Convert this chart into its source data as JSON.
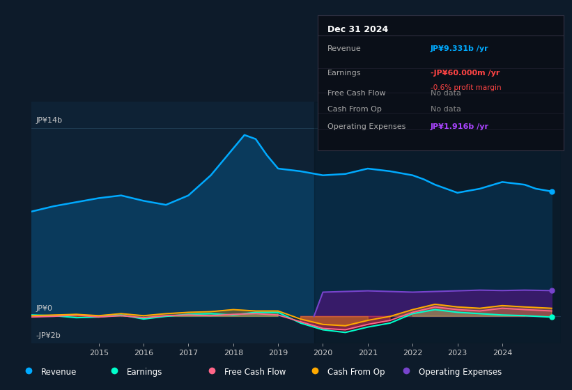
{
  "bg_color": "#0d1b2a",
  "chart_area_color": "#0e2235",
  "grid_color": "#1e3a50",
  "text_color": "#cccccc",
  "info_box": {
    "title": "Dec 31 2024",
    "rows": [
      {
        "label": "Revenue",
        "value": "JP¥9.331b /yr",
        "value_color": "#00aaff",
        "extra": null
      },
      {
        "label": "Earnings",
        "value": "-JP¥60.000m /yr",
        "value_color": "#ff4444",
        "extra": "-0.6% profit margin",
        "extra_color": "#ff4444"
      },
      {
        "label": "Free Cash Flow",
        "value": "No data",
        "value_color": "#888888",
        "extra": null
      },
      {
        "label": "Cash From Op",
        "value": "No data",
        "value_color": "#888888",
        "extra": null
      },
      {
        "label": "Operating Expenses",
        "value": "JP¥1.916b /yr",
        "value_color": "#aa44ff",
        "extra": null
      }
    ]
  },
  "ylim": [
    -2000000000.0,
    16000000000.0
  ],
  "ytick_labels_show": [
    "JP¥14b",
    "JP¥0",
    "-JP¥2b"
  ],
  "ytick_values_show": [
    14000000000.0,
    0,
    -2000000000.0
  ],
  "xlim_start": 2013.5,
  "xlim_end": 2025.3,
  "xtick_years": [
    2015,
    2016,
    2017,
    2018,
    2019,
    2020,
    2021,
    2022,
    2023,
    2024
  ],
  "revenue_color": "#00aaff",
  "earnings_color": "#00ffcc",
  "fcf_color": "#ff6688",
  "cashfromop_color": "#ffaa00",
  "opex_color": "#7744cc",
  "legend_items": [
    {
      "label": "Revenue",
      "color": "#00aaff"
    },
    {
      "label": "Earnings",
      "color": "#00ffcc"
    },
    {
      "label": "Free Cash Flow",
      "color": "#ff6688"
    },
    {
      "label": "Cash From Op",
      "color": "#ffaa00"
    },
    {
      "label": "Operating Expenses",
      "color": "#7744cc"
    }
  ],
  "revenue_x": [
    2013.5,
    2014.0,
    2014.5,
    2015.0,
    2015.5,
    2016.0,
    2016.5,
    2017.0,
    2017.5,
    2018.0,
    2018.25,
    2018.5,
    2018.75,
    2019.0,
    2019.5,
    2020.0,
    2020.5,
    2021.0,
    2021.5,
    2022.0,
    2022.25,
    2022.5,
    2022.75,
    2023.0,
    2023.5,
    2024.0,
    2024.5,
    2024.75,
    2025.1
  ],
  "revenue_y": [
    7800000000.0,
    8200000000.0,
    8500000000.0,
    8800000000.0,
    9000000000.0,
    8600000000.0,
    8300000000.0,
    9000000000.0,
    10500000000.0,
    12500000000.0,
    13500000000.0,
    13200000000.0,
    12000000000.0,
    11000000000.0,
    10800000000.0,
    10500000000.0,
    10600000000.0,
    11000000000.0,
    10800000000.0,
    10500000000.0,
    10200000000.0,
    9800000000.0,
    9500000000.0,
    9200000000.0,
    9500000000.0,
    10000000000.0,
    9800000000.0,
    9500000000.0,
    9300000000.0
  ],
  "earnings_x": [
    2013.5,
    2014.0,
    2014.5,
    2015.0,
    2015.5,
    2016.0,
    2016.5,
    2017.0,
    2017.5,
    2018.0,
    2018.5,
    2019.0,
    2019.5,
    2020.0,
    2020.5,
    2021.0,
    2021.5,
    2022.0,
    2022.5,
    2023.0,
    2023.5,
    2024.0,
    2024.5,
    2025.1
  ],
  "earnings_y": [
    100000000.0,
    50000000.0,
    -100000000.0,
    -50000000.0,
    100000000.0,
    -200000000.0,
    0.0,
    150000000.0,
    200000000.0,
    100000000.0,
    300000000.0,
    300000000.0,
    -500000000.0,
    -1000000000.0,
    -1200000000.0,
    -800000000.0,
    -500000000.0,
    200000000.0,
    500000000.0,
    300000000.0,
    200000000.0,
    100000000.0,
    50000000.0,
    -60000000.0
  ],
  "fcf_x": [
    2013.5,
    2014.0,
    2014.5,
    2015.0,
    2015.5,
    2016.0,
    2016.5,
    2017.0,
    2017.5,
    2018.0,
    2018.5,
    2019.0,
    2019.5,
    2020.0,
    2020.5,
    2021.0,
    2021.5,
    2022.0,
    2022.5,
    2023.0,
    2023.5,
    2024.0,
    2024.5,
    2025.1
  ],
  "fcf_y": [
    -50000000.0,
    0.0,
    100000000.0,
    -50000000.0,
    50000000.0,
    -100000000.0,
    50000000.0,
    100000000.0,
    50000000.0,
    150000000.0,
    200000000.0,
    100000000.0,
    -400000000.0,
    -900000000.0,
    -1000000000.0,
    -600000000.0,
    -300000000.0,
    300000000.0,
    700000000.0,
    500000000.0,
    400000000.0,
    600000000.0,
    500000000.0,
    400000000.0
  ],
  "cashfromop_x": [
    2013.5,
    2014.0,
    2014.5,
    2015.0,
    2015.5,
    2016.0,
    2016.5,
    2017.0,
    2017.5,
    2018.0,
    2018.5,
    2019.0,
    2019.5,
    2020.0,
    2020.5,
    2021.0,
    2021.5,
    2022.0,
    2022.5,
    2023.0,
    2023.5,
    2024.0,
    2024.5,
    2025.1
  ],
  "cashfromop_y": [
    50000000.0,
    100000000.0,
    150000000.0,
    50000000.0,
    200000000.0,
    50000000.0,
    200000000.0,
    300000000.0,
    350000000.0,
    500000000.0,
    400000000.0,
    400000000.0,
    -200000000.0,
    -600000000.0,
    -700000000.0,
    -300000000.0,
    0.0,
    500000000.0,
    900000000.0,
    700000000.0,
    600000000.0,
    800000000.0,
    700000000.0,
    600000000.0
  ],
  "opex_x": [
    2019.8,
    2020.0,
    2020.5,
    2021.0,
    2021.5,
    2022.0,
    2022.5,
    2023.0,
    2023.5,
    2024.0,
    2024.5,
    2025.1
  ],
  "opex_y": [
    0.0,
    1800000000.0,
    1850000000.0,
    1900000000.0,
    1850000000.0,
    1800000000.0,
    1850000000.0,
    1900000000.0,
    1950000000.0,
    1920000000.0,
    1950000000.0,
    1916000000.0
  ],
  "shadow_x_start": 2019.8
}
